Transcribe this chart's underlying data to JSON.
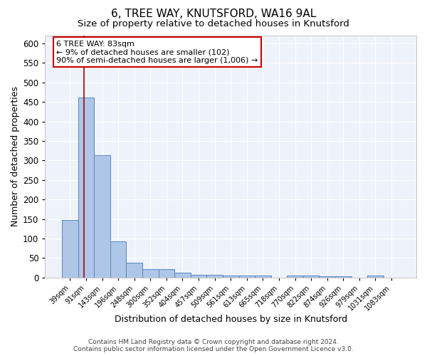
{
  "title1": "6, TREE WAY, KNUTSFORD, WA16 9AL",
  "title2": "Size of property relative to detached houses in Knutsford",
  "xlabel": "Distribution of detached houses by size in Knutsford",
  "ylabel": "Number of detached properties",
  "categories": [
    "39sqm",
    "91sqm",
    "143sqm",
    "196sqm",
    "248sqm",
    "300sqm",
    "352sqm",
    "404sqm",
    "457sqm",
    "509sqm",
    "561sqm",
    "613sqm",
    "665sqm",
    "718sqm",
    "770sqm",
    "822sqm",
    "874sqm",
    "926sqm",
    "979sqm",
    "1031sqm",
    "1083sqm"
  ],
  "values": [
    148,
    462,
    313,
    93,
    37,
    22,
    22,
    13,
    7,
    7,
    5,
    5,
    5,
    0,
    5,
    5,
    3,
    3,
    0,
    5,
    0
  ],
  "bar_color": "#aec6e8",
  "bar_edge_color": "#5588bb",
  "ylim": [
    0,
    620
  ],
  "yticks": [
    0,
    50,
    100,
    150,
    200,
    250,
    300,
    350,
    400,
    450,
    500,
    550,
    600
  ],
  "vline_color": "#aa0000",
  "annotation_text": "6 TREE WAY: 83sqm\n← 9% of detached houses are smaller (102)\n90% of semi-detached houses are larger (1,006) →",
  "annotation_box_color": "white",
  "annotation_box_edge": "#cc0000",
  "footer": "Contains HM Land Registry data © Crown copyright and database right 2024.\nContains public sector information licensed under the Open Government Licence v3.0.",
  "background_color": "#eef2fa",
  "grid_color": "white",
  "title1_fontsize": 11,
  "title2_fontsize": 9.5,
  "xlabel_fontsize": 9,
  "ylabel_fontsize": 9,
  "footer_fontsize": 6.5
}
